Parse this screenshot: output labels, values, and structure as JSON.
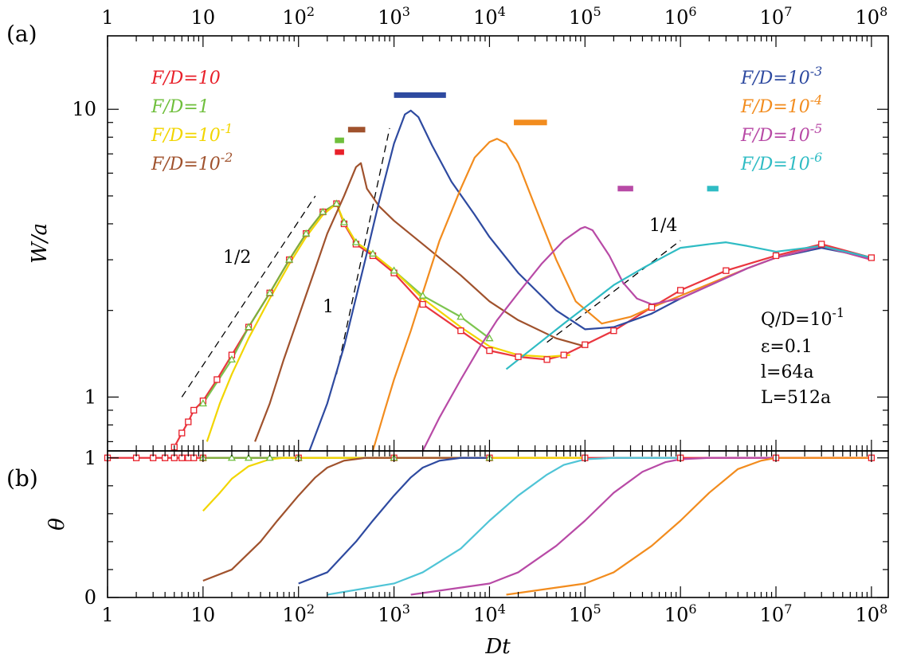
{
  "chart_data": [
    {
      "panel": "(a)",
      "type": "line",
      "x_scale": "log",
      "y_scale": "log",
      "xlim": [
        1,
        150000000
      ],
      "ylim": [
        0.65,
        18
      ],
      "ylabel": "W/a",
      "x_tick_labels": [
        [
          "1",
          ""
        ],
        [
          "10",
          ""
        ],
        [
          "10",
          "2"
        ],
        [
          "10",
          "3"
        ],
        [
          "10",
          "4"
        ],
        [
          "10",
          "5"
        ],
        [
          "10",
          "6"
        ],
        [
          "10",
          "7"
        ],
        [
          "10",
          "8"
        ]
      ],
      "x_tick_values": [
        1,
        10,
        100,
        1000,
        10000,
        100000,
        1000000,
        10000000,
        100000000
      ],
      "y_tick_labels": [
        "1",
        "10"
      ],
      "y_tick_values": [
        1,
        10
      ],
      "legend_left": [
        {
          "label": "F/D=10",
          "color": "#e8202a"
        },
        {
          "label": "F/D=1",
          "color": "#6fbf3c"
        },
        {
          "label": "F/D=10",
          "exp": "-1",
          "color": "#f2d500"
        },
        {
          "label": "F/D=10",
          "exp": "-2",
          "color": "#a0522d"
        }
      ],
      "legend_right": [
        {
          "label": "F/D=10",
          "exp": "-3",
          "color": "#2e4aa0"
        },
        {
          "label": "F/D=10",
          "exp": "-4",
          "color": "#f28c1e"
        },
        {
          "label": "F/D=10",
          "exp": "-5",
          "color": "#b84aa6"
        },
        {
          "label": "F/D=10",
          "exp": "-6",
          "color": "#2fbcc4"
        }
      ],
      "parameters": [
        "Q/D=10",
        "-1",
        "ε=0.1",
        "l=64a",
        "L=512a"
      ],
      "slope_guides": [
        {
          "label": "1/2",
          "x": [
            6,
            150
          ],
          "y": [
            1.0,
            5.0
          ]
        },
        {
          "label": "1",
          "x": [
            250,
            900
          ],
          "y": [
            1.2,
            8.6
          ]
        },
        {
          "label": "1/4",
          "x": [
            40000,
            1000000
          ],
          "y": [
            1.55,
            3.5
          ]
        }
      ],
      "error_bars": [
        {
          "color": "#e8202a",
          "x": [
            240,
            300
          ],
          "y": 7.1
        },
        {
          "color": "#6fbf3c",
          "x": [
            240,
            300
          ],
          "y": 7.8
        },
        {
          "color": "#a0522d",
          "x": [
            330,
            500
          ],
          "y": 8.5
        },
        {
          "color": "#2e4aa0",
          "x": [
            1000,
            3500
          ],
          "y": 11.2
        },
        {
          "color": "#f28c1e",
          "x": [
            18000,
            40000
          ],
          "y": 9.0
        },
        {
          "color": "#b84aa6",
          "x": [
            220000,
            320000
          ],
          "y": 5.3
        },
        {
          "color": "#2fbcc4",
          "x": [
            1900000,
            2500000
          ],
          "y": 5.3
        }
      ],
      "series": [
        {
          "name": "F/D=10",
          "color": "#e8202a",
          "marker": "square",
          "x": [
            5,
            6,
            7,
            8,
            10,
            14,
            20,
            30,
            50,
            80,
            120,
            180,
            250,
            300,
            400,
            600,
            1000,
            2000,
            5000,
            10000,
            20000,
            40000,
            60000,
            100000,
            200000,
            500000,
            1000000,
            3000000,
            10000000,
            30000000,
            100000000
          ],
          "y": [
            0.67,
            0.75,
            0.82,
            0.9,
            0.97,
            1.15,
            1.4,
            1.75,
            2.3,
            3.0,
            3.7,
            4.4,
            4.7,
            4.0,
            3.4,
            3.1,
            2.7,
            2.1,
            1.7,
            1.45,
            1.38,
            1.35,
            1.4,
            1.52,
            1.7,
            2.05,
            2.35,
            2.75,
            3.1,
            3.4,
            3.05
          ]
        },
        {
          "name": "F/D=1",
          "color": "#6fbf3c",
          "marker": "triangle",
          "x": [
            10,
            20,
            30,
            50,
            80,
            120,
            180,
            250,
            300,
            400,
            600,
            1000,
            2000,
            5000,
            10000
          ],
          "y": [
            0.95,
            1.35,
            1.75,
            2.3,
            3.0,
            3.7,
            4.4,
            4.7,
            4.05,
            3.45,
            3.15,
            2.75,
            2.25,
            1.9,
            1.6
          ]
        },
        {
          "name": "F/D=10^-1",
          "color": "#f2d500",
          "x": [
            11,
            15,
            20,
            30,
            50,
            80,
            120,
            180,
            250,
            300,
            400,
            600,
            1000,
            2000,
            5000,
            10000,
            20000,
            40000,
            70000
          ],
          "y": [
            0.7,
            0.95,
            1.2,
            1.6,
            2.2,
            2.9,
            3.6,
            4.3,
            4.7,
            4.05,
            3.45,
            3.15,
            2.75,
            2.2,
            1.75,
            1.5,
            1.4,
            1.38,
            1.4
          ]
        },
        {
          "name": "F/D=10^-2",
          "color": "#a0522d",
          "x": [
            35,
            50,
            70,
            100,
            150,
            200,
            300,
            400,
            450,
            520,
            700,
            1000,
            2000,
            5000,
            10000,
            20000,
            50000,
            100000
          ],
          "y": [
            0.7,
            0.95,
            1.35,
            1.9,
            2.8,
            3.7,
            5.0,
            6.3,
            6.5,
            5.3,
            4.6,
            4.1,
            3.4,
            2.65,
            2.15,
            1.85,
            1.6,
            1.5
          ]
        },
        {
          "name": "F/D=10^-3",
          "color": "#2e4aa0",
          "x": [
            130,
            200,
            300,
            500,
            700,
            1000,
            1300,
            1500,
            1800,
            2500,
            4000,
            7000,
            10000,
            20000,
            50000,
            100000,
            200000,
            500000,
            1000000,
            5000000,
            10000000,
            30000000,
            100000000
          ],
          "y": [
            0.65,
            0.95,
            1.5,
            3.0,
            4.8,
            7.6,
            9.6,
            9.9,
            9.4,
            7.5,
            5.6,
            4.3,
            3.6,
            2.7,
            2.0,
            1.72,
            1.75,
            1.95,
            2.2,
            2.8,
            3.05,
            3.3,
            3.05
          ]
        },
        {
          "name": "F/D=10^-4",
          "color": "#f28c1e",
          "x": [
            600,
            800,
            1000,
            1500,
            2000,
            3000,
            5000,
            7000,
            10000,
            12000,
            15000,
            20000,
            30000,
            50000,
            80000,
            150000,
            300000,
            500000,
            1000000,
            5000000,
            10000000,
            30000000,
            100000000
          ],
          "y": [
            0.65,
            0.9,
            1.15,
            1.7,
            2.3,
            3.5,
            5.3,
            6.8,
            7.7,
            7.9,
            7.6,
            6.5,
            4.6,
            3.0,
            2.15,
            1.8,
            1.9,
            2.05,
            2.25,
            2.8,
            3.05,
            3.35,
            3.0
          ]
        },
        {
          "name": "F/D=10^-5",
          "color": "#b84aa6",
          "x": [
            2000,
            3000,
            5000,
            8000,
            12000,
            20000,
            35000,
            60000,
            90000,
            100000,
            120000,
            180000,
            250000,
            350000,
            500000,
            1000000,
            5000000,
            10000000,
            30000000,
            100000000
          ],
          "y": [
            0.65,
            0.85,
            1.15,
            1.5,
            1.85,
            2.3,
            2.9,
            3.5,
            3.85,
            3.9,
            3.8,
            3.1,
            2.5,
            2.2,
            2.1,
            2.2,
            2.8,
            3.05,
            3.35,
            3.0
          ]
        },
        {
          "name": "F/D=10^-6",
          "color": "#2fbcc4",
          "x": [
            15000,
            30000,
            60000,
            100000,
            200000,
            400000,
            700000,
            1000000,
            2000000,
            3000000,
            5000000,
            10000000,
            30000000,
            100000000
          ],
          "y": [
            1.25,
            1.5,
            1.8,
            2.05,
            2.45,
            2.8,
            3.1,
            3.3,
            3.4,
            3.45,
            3.35,
            3.2,
            3.35,
            3.05
          ]
        }
      ]
    },
    {
      "panel": "(b)",
      "type": "line",
      "x_scale": "log",
      "y_scale": "linear",
      "xlim": [
        1,
        150000000
      ],
      "ylim": [
        0,
        1.05
      ],
      "xlabel": "Dt",
      "ylabel": "θ",
      "x_tick_labels": [
        [
          "1",
          ""
        ],
        [
          "10",
          ""
        ],
        [
          "10",
          "2"
        ],
        [
          "10",
          "3"
        ],
        [
          "10",
          "4"
        ],
        [
          "10",
          "5"
        ],
        [
          "10",
          "6"
        ],
        [
          "10",
          "7"
        ],
        [
          "10",
          "8"
        ]
      ],
      "x_tick_values": [
        1,
        10,
        100,
        1000,
        10000,
        100000,
        1000000,
        10000000,
        100000000
      ],
      "y_tick_labels": [
        "0",
        "1"
      ],
      "y_tick_values": [
        0,
        1
      ],
      "series": [
        {
          "name": "F/D=10",
          "color": "#e8202a",
          "marker": "square",
          "x": [
            1,
            2,
            3,
            4,
            5,
            6,
            7,
            8,
            10,
            100,
            1000,
            10000,
            100000,
            1000000,
            10000000,
            100000000
          ],
          "y": [
            1,
            1,
            1,
            1,
            1,
            1,
            1,
            1,
            1,
            1,
            1,
            1,
            1,
            1,
            1,
            1
          ]
        },
        {
          "name": "F/D=1",
          "color": "#6fbf3c",
          "marker": "triangle",
          "x": [
            10,
            20,
            30,
            50,
            100,
            1000,
            10000
          ],
          "y": [
            1,
            1,
            1,
            1,
            1,
            1,
            1
          ]
        },
        {
          "name": "F/D=10^-1",
          "color": "#f2d500",
          "x": [
            10,
            15,
            20,
            30,
            50,
            70,
            100,
            1000,
            10000,
            100000
          ],
          "y": [
            0.62,
            0.75,
            0.85,
            0.94,
            0.99,
            1.0,
            1.0,
            1.0,
            1.0,
            1.0
          ]
        },
        {
          "name": "F/D=10^-2",
          "color": "#a0522d",
          "x": [
            10,
            20,
            40,
            60,
            100,
            150,
            200,
            300,
            500,
            1000,
            10000
          ],
          "y": [
            0.12,
            0.2,
            0.4,
            0.55,
            0.73,
            0.86,
            0.93,
            0.98,
            1.0,
            1.0,
            1.0
          ]
        },
        {
          "name": "F/D=10^-3",
          "color": "#2e4aa0",
          "x": [
            100,
            200,
            400,
            600,
            1000,
            1500,
            2000,
            3000,
            5000,
            10000
          ],
          "y": [
            0.1,
            0.18,
            0.4,
            0.55,
            0.73,
            0.86,
            0.93,
            0.98,
            1.0,
            1.0
          ]
        },
        {
          "name": "F/D=10^-6",
          "color": "#4fc4d6",
          "x": [
            200,
            1000,
            2000,
            5000,
            10000,
            20000,
            40000,
            60000,
            100000,
            200000,
            1000000
          ],
          "y": [
            0.02,
            0.1,
            0.18,
            0.35,
            0.55,
            0.73,
            0.88,
            0.95,
            0.99,
            1.0,
            1.0
          ]
        },
        {
          "name": "F/D=10^-5",
          "color": "#b84aa6",
          "x": [
            1500,
            10000,
            20000,
            50000,
            100000,
            200000,
            400000,
            700000,
            1000000,
            2000000,
            10000000
          ],
          "y": [
            0.02,
            0.1,
            0.18,
            0.37,
            0.55,
            0.75,
            0.9,
            0.97,
            0.99,
            1.0,
            1.0
          ]
        },
        {
          "name": "F/D=10^-4",
          "color": "#f28c1e",
          "x": [
            15000,
            100000,
            200000,
            500000,
            1000000,
            2000000,
            4000000,
            7000000,
            10000000,
            100000000
          ],
          "y": [
            0.02,
            0.1,
            0.18,
            0.37,
            0.55,
            0.75,
            0.92,
            0.98,
            1.0,
            1.0
          ]
        }
      ]
    }
  ]
}
